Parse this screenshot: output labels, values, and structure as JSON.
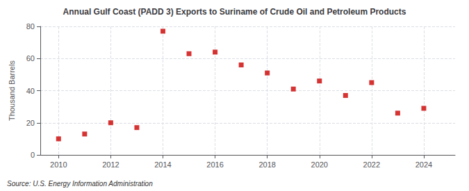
{
  "chart_data": {
    "type": "scatter",
    "title": "Annual Gulf Coast (PADD 3) Exports to Suriname of Crude Oil and Petroleum Products",
    "ylabel": "Thousand Barrels",
    "source": "Source: U.S. Energy Information Administration",
    "x": [
      2010,
      2011,
      2012,
      2013,
      2014,
      2015,
      2016,
      2017,
      2018,
      2019,
      2020,
      2021,
      2022,
      2023,
      2024
    ],
    "values": [
      10,
      13,
      20,
      17,
      77,
      63,
      64,
      56,
      51,
      41,
      46,
      37,
      45,
      26,
      29
    ],
    "color": "#cc0000",
    "marker": "square",
    "xlim": [
      2009.3,
      2025.2
    ],
    "xticks": [
      2010,
      2012,
      2014,
      2016,
      2018,
      2020,
      2022,
      2024
    ],
    "ylim": [
      0,
      80
    ],
    "yticks": [
      0,
      20,
      40,
      60,
      80
    ],
    "grid": true
  }
}
